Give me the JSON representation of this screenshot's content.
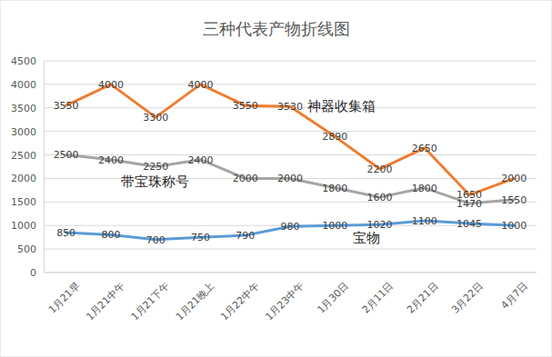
{
  "chart_data": {
    "type": "line",
    "title": "三种代表产物折线图",
    "categories": [
      "1月21早",
      "1月21中午",
      "1月21下午",
      "1月21晚上",
      "1月22中午",
      "1月23中午",
      "1月30日",
      "2月11日",
      "2月21日",
      "3月22日",
      "4月7日"
    ],
    "series": [
      {
        "name": "神器收集箱",
        "color": "#ed7d31",
        "values": [
          3550,
          4000,
          3300,
          4000,
          3550,
          3530,
          2890,
          2200,
          2650,
          1650,
          2000
        ]
      },
      {
        "name": "带宝珠称号",
        "color": "#a5a5a5",
        "values": [
          2500,
          2400,
          2250,
          2400,
          2000,
          2000,
          1800,
          1600,
          1800,
          1470,
          1550
        ]
      },
      {
        "name": "宝物",
        "color": "#5b9bd5",
        "values": [
          850,
          800,
          700,
          750,
          790,
          980,
          1000,
          1020,
          1100,
          1045,
          1000
        ]
      }
    ],
    "ylim": [
      0,
      4500
    ],
    "yticks": [
      0,
      500,
      1000,
      1500,
      2000,
      2500,
      3000,
      3500,
      4000,
      4500
    ],
    "grid": true,
    "data_labels": true
  }
}
